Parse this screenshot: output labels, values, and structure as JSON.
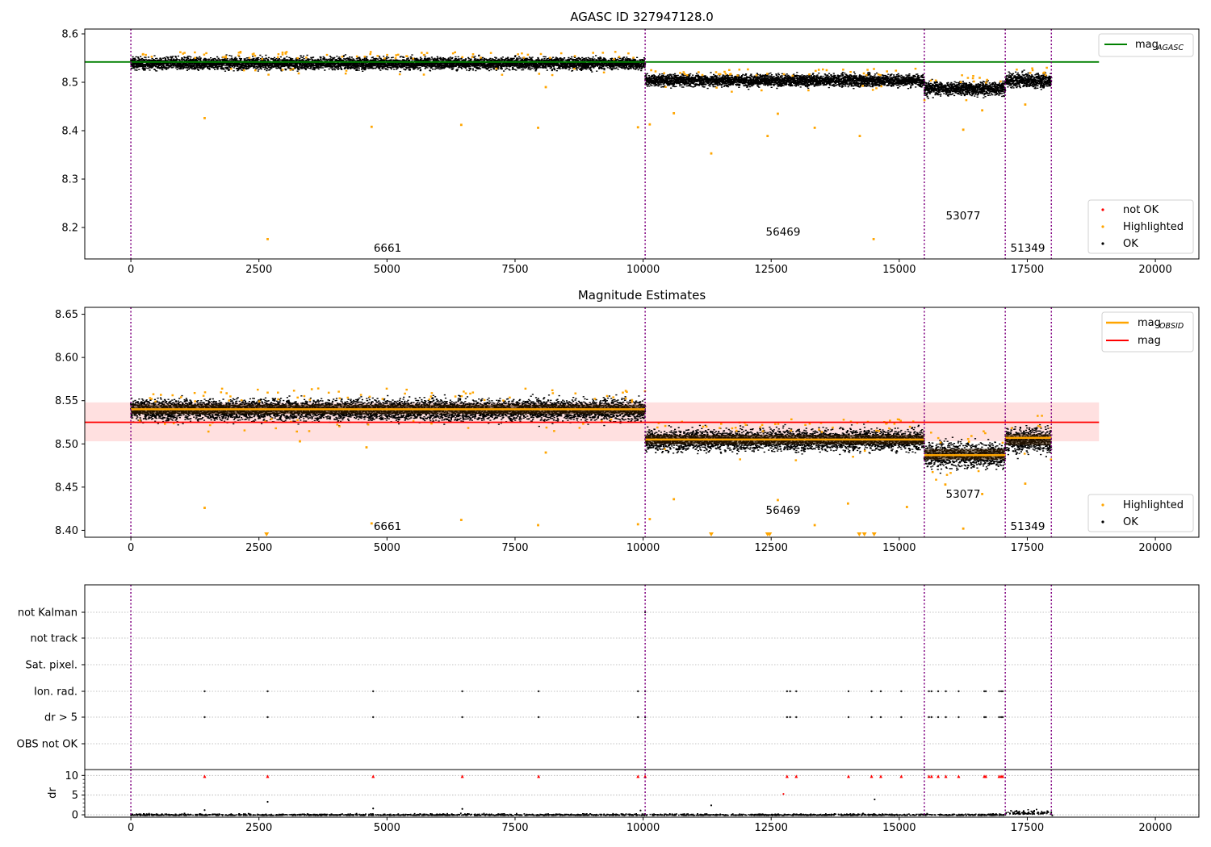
{
  "colors": {
    "ok": "#000000",
    "highlighted": "#ffa500",
    "not_ok": "#ff0000",
    "mag_agasc": "#008000",
    "mag": "#ff0000",
    "mag_obsid": "#ffa500",
    "obs_line": "#800080",
    "band": "#ffcccc"
  },
  "chart_data": [
    {
      "type": "scatter",
      "title": "AGASC ID 327947128.0",
      "xlim": [
        -900,
        20850
      ],
      "ylim": [
        8.135,
        8.61
      ],
      "xticks": [
        0,
        2500,
        5000,
        7500,
        10000,
        12500,
        15000,
        17500,
        20000
      ],
      "yticks": [
        8.2,
        8.3,
        8.4,
        8.5,
        8.6
      ],
      "segments": [
        {
          "obsid": "6661",
          "x": [
            0,
            10040
          ],
          "mean": 8.54,
          "spread": 0.006
        },
        {
          "obsid": "56469",
          "x": [
            10040,
            15490
          ],
          "mean": 8.505,
          "spread": 0.006
        },
        {
          "obsid": "53077",
          "x": [
            15490,
            17070
          ],
          "mean": 8.488,
          "spread": 0.007
        },
        {
          "obsid": "51349",
          "x": [
            17070,
            17970
          ],
          "mean": 8.505,
          "spread": 0.007
        }
      ],
      "obs_boundaries": [
        0,
        10040,
        15490,
        17070,
        17970
      ],
      "mag_agasc": {
        "y": 8.542,
        "x": [
          -900,
          18900
        ]
      },
      "highlighted_outliers": [
        [
          1440,
          8.426
        ],
        [
          2670,
          8.176
        ],
        [
          4700,
          8.408
        ],
        [
          6450,
          8.412
        ],
        [
          7950,
          8.406
        ],
        [
          9900,
          8.407
        ],
        [
          10130,
          8.413
        ],
        [
          11330,
          8.353
        ],
        [
          12430,
          8.389
        ],
        [
          14500,
          8.176
        ],
        [
          14230,
          8.389
        ],
        [
          16250,
          8.402
        ],
        [
          16620,
          8.442
        ],
        [
          17460,
          8.454
        ],
        [
          8100,
          8.49
        ],
        [
          10600,
          8.436
        ],
        [
          12630,
          8.435
        ],
        [
          13350,
          8.406
        ]
      ],
      "legend": {
        "position": "upper right",
        "entries": [
          "mag",
          "AGASC"
        ]
      },
      "legend_points": {
        "position": "lower right",
        "entries": [
          "not OK",
          "Highlighted",
          "OK"
        ]
      }
    },
    {
      "type": "scatter",
      "title": "Magnitude Estimates",
      "xlim": [
        -900,
        20850
      ],
      "ylim": [
        8.392,
        8.658
      ],
      "xticks": [
        0,
        2500,
        5000,
        7500,
        10000,
        12500,
        15000,
        17500,
        20000
      ],
      "yticks": [
        8.4,
        8.45,
        8.5,
        8.55,
        8.6,
        8.65
      ],
      "ytick_labels": [
        "8.40",
        "8.45",
        "8.50",
        "8.55",
        "8.60",
        "8.65"
      ],
      "mag": {
        "y": 8.525,
        "band": [
          8.503,
          8.548
        ],
        "x": [
          -900,
          18900
        ]
      },
      "mag_obsid": [
        8.54,
        8.505,
        8.487,
        8.507
      ],
      "highlighted_outliers": [
        [
          1440,
          8.426
        ],
        [
          4700,
          8.408
        ],
        [
          6450,
          8.412
        ],
        [
          7950,
          8.406
        ],
        [
          9900,
          8.407
        ],
        [
          10130,
          8.413
        ],
        [
          10600,
          8.436
        ],
        [
          12630,
          8.435
        ],
        [
          13350,
          8.406
        ],
        [
          14000,
          8.431
        ],
        [
          15150,
          8.427
        ],
        [
          15900,
          8.453
        ],
        [
          16250,
          8.402
        ],
        [
          16620,
          8.442
        ],
        [
          17460,
          8.454
        ],
        [
          8100,
          8.49
        ],
        [
          3300,
          8.503
        ],
        [
          4600,
          8.496
        ]
      ],
      "clipped_markers": [
        2650,
        11330,
        12430,
        12470,
        14220,
        14320,
        14510
      ],
      "legend": {
        "position": "upper right",
        "entries": [
          "mag",
          "OBSID",
          "mag"
        ]
      },
      "legend_points": {
        "position": "lower right",
        "entries": [
          "Highlighted",
          "OK"
        ]
      }
    },
    {
      "type": "scatter",
      "title": "",
      "xlim": [
        -900,
        20850
      ],
      "xticks": [
        0,
        2500,
        5000,
        7500,
        10000,
        12500,
        15000,
        17500,
        20000
      ],
      "flag_labels": [
        "not Kalman",
        "not track",
        "Sat. pixel.",
        "Ion. rad.",
        "dr > 5",
        "OBS not OK"
      ],
      "flag_events": [
        1440,
        2670,
        4730,
        6470,
        7960,
        9900,
        10040,
        12810,
        12870,
        12990,
        14010,
        14460,
        14640,
        15040,
        15580,
        15630,
        15760,
        15910,
        16160,
        16660,
        16690,
        16950,
        16990,
        17020
      ],
      "flag_flags": [
        "Ion. rad.",
        "dr > 5"
      ],
      "not_kalman_events": [
        10040
      ],
      "dr": {
        "ylabel": "dr",
        "ylim": [
          -0.6,
          11.5
        ],
        "yticks": [
          0,
          5,
          10
        ],
        "clip": 10,
        "samples_red": [
          1440,
          2670,
          4730,
          6470,
          7960,
          9900,
          10040,
          12810,
          12990,
          14010,
          14460,
          14640,
          15040,
          15580,
          15630,
          15760,
          15910,
          16160,
          16660,
          16690,
          16950,
          16990,
          17020
        ],
        "extra_points": [
          [
            2670,
            3.3
          ],
          [
            4730,
            1.6
          ],
          [
            6470,
            1.5
          ],
          [
            11330,
            2.4
          ],
          [
            12740,
            5.3
          ],
          [
            14520,
            3.9
          ],
          [
            1440,
            1.2
          ],
          [
            9950,
            1.1
          ]
        ]
      }
    }
  ]
}
